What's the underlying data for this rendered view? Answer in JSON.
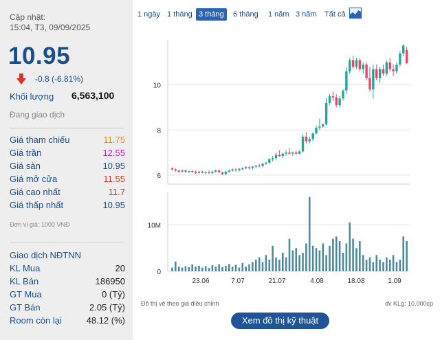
{
  "header": {
    "updated_label": "Cập nhật:",
    "updated_time": "15:04, T3, 09/09/2025"
  },
  "quote": {
    "price": "10.95",
    "change": "-0.8 (-6.81%)",
    "direction": "down",
    "volume_label": "Khối lượng",
    "volume_value": "6,563,100",
    "status": "Đang giao dịch"
  },
  "price_table": [
    {
      "label": "Giá tham chiếu",
      "value": "11.75",
      "color": "#e8900c"
    },
    {
      "label": "Giá trần",
      "value": "12.55",
      "color": "#c21fb0"
    },
    {
      "label": "Giá sàn",
      "value": "10.95",
      "color": "#1a4e8a"
    },
    {
      "label": "Giá mở cửa",
      "value": "11.55",
      "color": "#c0392b"
    },
    {
      "label": "Giá cao nhất",
      "value": "11.7",
      "color": "#c0392b"
    },
    {
      "label": "Giá thấp nhất",
      "value": "10.95",
      "color": "#1a4e8a"
    }
  ],
  "unit_note": "Đơn vị giá: 1000 VNĐ",
  "foreign": {
    "title": "Giao dịch NĐTNN",
    "rows": [
      {
        "label": "KL Mua",
        "value": "20"
      },
      {
        "label": "KL Bán",
        "value": "186950"
      },
      {
        "label": "GT Mua",
        "value": "0 (Tỷ)"
      },
      {
        "label": "GT Bán",
        "value": "2.05 (Tỷ)"
      },
      {
        "label": "Room còn lại",
        "value": "48.12 (%)"
      }
    ]
  },
  "tabs": [
    {
      "label": "1 ngày",
      "active": false
    },
    {
      "label": "1 tháng",
      "active": false
    },
    {
      "label": "3 tháng",
      "active": true
    },
    {
      "label": "6 tháng",
      "active": false
    },
    {
      "label": "1 năm",
      "active": false
    },
    {
      "label": "3 năm",
      "active": false
    },
    {
      "label": "Tất cả",
      "active": false
    }
  ],
  "chart_icon": "chart-line-icon",
  "footer": {
    "note": "Đồ thị vẽ theo giá điều chỉnh",
    "volume_unit": "dv KLg: 10,000cp",
    "tech_button": "Xem đồ thị kỹ thuật"
  },
  "colors": {
    "up": "#26a69a",
    "down": "#e04c6c",
    "volume": "#4f8a9c",
    "accent": "#1a4e8a"
  },
  "chart_data": {
    "type": "candlestick",
    "price_axis": {
      "ticks": [
        "6",
        "8",
        "10"
      ],
      "ylim": [
        5.6,
        12.0
      ]
    },
    "volume_axis": {
      "ticks": [
        "0",
        "10M"
      ],
      "ylim": [
        0,
        17000000
      ]
    },
    "x_ticks": [
      "23.06",
      "7.07",
      "21.07",
      "4.08",
      "18.08",
      "1.09"
    ],
    "ohlc": [
      [
        6.3,
        6.35,
        6.2,
        6.25
      ],
      [
        6.25,
        6.3,
        6.15,
        6.2
      ],
      [
        6.2,
        6.25,
        6.1,
        6.15
      ],
      [
        6.15,
        6.25,
        6.1,
        6.2
      ],
      [
        6.2,
        6.25,
        6.1,
        6.15
      ],
      [
        6.15,
        6.2,
        6.1,
        6.18
      ],
      [
        6.18,
        6.22,
        6.1,
        6.15
      ],
      [
        6.15,
        6.2,
        6.05,
        6.1
      ],
      [
        6.1,
        6.2,
        6.05,
        6.15
      ],
      [
        6.15,
        6.2,
        6.08,
        6.1
      ],
      [
        6.1,
        6.18,
        6.05,
        6.12
      ],
      [
        6.12,
        6.2,
        6.05,
        6.1
      ],
      [
        6.1,
        6.2,
        6.05,
        6.15
      ],
      [
        6.15,
        6.25,
        6.1,
        6.2
      ],
      [
        6.2,
        6.25,
        6.1,
        6.12
      ],
      [
        6.12,
        6.15,
        6.0,
        6.05
      ],
      [
        6.05,
        6.2,
        6.0,
        6.15
      ],
      [
        6.15,
        6.25,
        6.1,
        6.2
      ],
      [
        6.2,
        6.3,
        6.15,
        6.25
      ],
      [
        6.25,
        6.3,
        6.15,
        6.22
      ],
      [
        6.22,
        6.3,
        6.15,
        6.28
      ],
      [
        6.28,
        6.35,
        6.2,
        6.3
      ],
      [
        6.3,
        6.4,
        6.25,
        6.35
      ],
      [
        6.35,
        6.4,
        6.25,
        6.32
      ],
      [
        6.32,
        6.4,
        6.25,
        6.38
      ],
      [
        6.38,
        6.45,
        6.3,
        6.42
      ],
      [
        6.42,
        6.5,
        6.35,
        6.4
      ],
      [
        6.4,
        6.55,
        6.35,
        6.5
      ],
      [
        6.5,
        6.6,
        6.45,
        6.55
      ],
      [
        6.55,
        6.75,
        6.5,
        6.7
      ],
      [
        6.7,
        6.85,
        6.6,
        6.75
      ],
      [
        6.75,
        7.0,
        6.65,
        6.9
      ],
      [
        6.9,
        7.1,
        6.8,
        6.85
      ],
      [
        6.85,
        7.0,
        6.75,
        6.95
      ],
      [
        6.95,
        7.1,
        6.85,
        7.0
      ],
      [
        7.0,
        7.2,
        6.9,
        6.95
      ],
      [
        6.95,
        7.05,
        6.85,
        7.0
      ],
      [
        7.0,
        7.1,
        6.9,
        6.95
      ],
      [
        6.95,
        7.1,
        6.9,
        7.05
      ],
      [
        7.05,
        7.8,
        7.0,
        7.7
      ],
      [
        7.7,
        7.9,
        7.4,
        7.5
      ],
      [
        7.5,
        7.7,
        7.4,
        7.6
      ],
      [
        7.6,
        7.9,
        7.5,
        7.85
      ],
      [
        7.85,
        8.2,
        7.8,
        8.1
      ],
      [
        8.1,
        8.5,
        8.0,
        8.15
      ],
      [
        8.15,
        8.3,
        8.1,
        8.25
      ],
      [
        8.25,
        9.4,
        8.2,
        9.2
      ],
      [
        9.2,
        9.6,
        9.1,
        9.5
      ],
      [
        9.5,
        9.7,
        9.3,
        9.45
      ],
      [
        9.45,
        9.6,
        9.0,
        9.1
      ],
      [
        9.1,
        9.5,
        9.0,
        9.4
      ],
      [
        9.4,
        9.8,
        9.3,
        9.75
      ],
      [
        9.75,
        10.8,
        9.6,
        10.6
      ],
      [
        10.6,
        11.2,
        10.5,
        11.1
      ],
      [
        11.1,
        11.3,
        10.7,
        10.8
      ],
      [
        10.8,
        11.2,
        10.7,
        11.1
      ],
      [
        11.1,
        11.2,
        10.6,
        10.7
      ],
      [
        10.7,
        11.0,
        10.5,
        10.9
      ],
      [
        10.9,
        11.0,
        10.2,
        10.3
      ],
      [
        10.3,
        10.8,
        9.7,
        9.8
      ],
      [
        9.8,
        10.9,
        9.4,
        10.7
      ],
      [
        10.7,
        10.9,
        10.2,
        10.3
      ],
      [
        10.3,
        10.8,
        10.1,
        10.7
      ],
      [
        10.7,
        10.9,
        10.4,
        10.5
      ],
      [
        10.5,
        11.1,
        10.4,
        11.0
      ],
      [
        11.0,
        11.2,
        10.6,
        10.7
      ],
      [
        10.7,
        10.9,
        10.4,
        10.6
      ],
      [
        10.6,
        11.0,
        10.5,
        10.9
      ],
      [
        10.9,
        11.5,
        10.8,
        11.4
      ],
      [
        11.4,
        11.8,
        11.3,
        11.75
      ],
      [
        11.55,
        11.7,
        10.95,
        10.95
      ]
    ],
    "volume": [
      0.8,
      2.1,
      1.0,
      0.8,
      1.1,
      0.9,
      1.5,
      1.0,
      1.2,
      0.8,
      1.1,
      0.7,
      1.3,
      1.0,
      1.5,
      0.9,
      1.2,
      1.6,
      1.0,
      1.4,
      0.8,
      1.8,
      1.0,
      1.5,
      2.0,
      2.5,
      3.0,
      2.0,
      3.5,
      2.5,
      5.5,
      3.0,
      2.5,
      4.0,
      3.0,
      7.0,
      4.5,
      5.0,
      3.5,
      4.0,
      6.0,
      16.0,
      5.5,
      5.0,
      4.5,
      6.0,
      3.5,
      5.5,
      7.0,
      7.5,
      6.5,
      4.0,
      6.0,
      10.5,
      7.0,
      5.0,
      6.5,
      3.5,
      2.5,
      3.0,
      2.0,
      3.5,
      2.5,
      2.0,
      3.0,
      2.5,
      3.5,
      2.0,
      2.5,
      7.5,
      6.5
    ]
  }
}
